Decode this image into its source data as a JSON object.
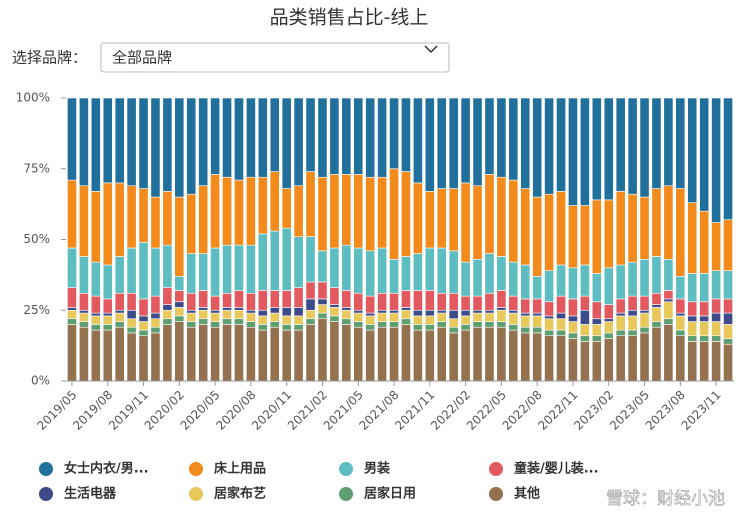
{
  "chart_data": {
    "type": "stacked_bar_percent",
    "title": "品类销售占比-线上",
    "filter_label": "选择品牌：",
    "filter_value": "全部品牌",
    "watermark": "雪球：财经小池",
    "categories": [
      "2019/05",
      null,
      null,
      "2019/08",
      null,
      null,
      "2019/11",
      null,
      null,
      "2020/02",
      null,
      null,
      "2020/05",
      null,
      null,
      "2020/08",
      null,
      null,
      "2020/11",
      null,
      null,
      "2021/02",
      null,
      null,
      "2021/05",
      null,
      null,
      "2021/08",
      null,
      null,
      "2021/11",
      null,
      null,
      "2022/02",
      null,
      null,
      "2022/05",
      null,
      null,
      "2022/08",
      null,
      null,
      "2022/11",
      null,
      null,
      "2023/02",
      null,
      null,
      "2023/05",
      null,
      null,
      "2023/08",
      null,
      null,
      "2023/11",
      null
    ],
    "ylim": [
      0,
      100
    ],
    "yticks": [
      {
        "value": 0,
        "label": "0%"
      },
      {
        "value": 25,
        "label": "25%"
      },
      {
        "value": 50,
        "label": "50%"
      },
      {
        "value": 75,
        "label": "75%"
      },
      {
        "value": 100,
        "label": "100%"
      }
    ],
    "series": [
      {
        "name": "女士内衣/男...",
        "color": "#21709c",
        "values": [
          29,
          31,
          33,
          30,
          30,
          31,
          32,
          35,
          33,
          35,
          34,
          31,
          27,
          28,
          29,
          28,
          28,
          26,
          32,
          31,
          26,
          28,
          27,
          27,
          27,
          28,
          28,
          25,
          26,
          30,
          33,
          32,
          32,
          30,
          31,
          27,
          28,
          29,
          32,
          35,
          34,
          33,
          38,
          38,
          36,
          36,
          33,
          34,
          35,
          32,
          31,
          32,
          37,
          40,
          44,
          43
        ]
      },
      {
        "name": "床上用品",
        "color": "#f38b1c",
        "values": [
          24,
          25,
          25,
          29,
          26,
          22,
          19,
          18,
          19,
          28,
          21,
          24,
          26,
          24,
          23,
          24,
          20,
          21,
          14,
          18,
          23,
          26,
          26,
          25,
          26,
          26,
          25,
          32,
          30,
          25,
          20,
          21,
          22,
          28,
          26,
          28,
          28,
          29,
          27,
          28,
          27,
          26,
          22,
          21,
          26,
          24,
          26,
          24,
          22,
          24,
          26,
          31,
          25,
          22,
          17,
          18
        ]
      },
      {
        "name": "男装",
        "color": "#5ebdc0",
        "values": [
          14,
          13,
          12,
          12,
          13,
          16,
          20,
          17,
          15,
          5,
          14,
          13,
          17,
          17,
          16,
          17,
          20,
          21,
          22,
          18,
          16,
          11,
          14,
          16,
          16,
          16,
          16,
          12,
          12,
          13,
          15,
          16,
          15,
          12,
          13,
          14,
          12,
          12,
          12,
          8,
          11,
          11,
          11,
          11,
          10,
          13,
          12,
          12,
          13,
          13,
          11,
          8,
          10,
          10,
          10,
          10
        ]
      },
      {
        "name": "童装/婴儿装...",
        "color": "#e25a5f",
        "values": [
          7,
          6,
          6,
          5,
          6,
          6,
          6,
          6,
          6,
          4,
          6,
          6,
          5,
          5,
          6,
          6,
          7,
          6,
          6,
          7,
          6,
          6,
          6,
          6,
          6,
          6,
          6,
          6,
          6,
          7,
          7,
          6,
          6,
          5,
          5,
          6,
          6,
          5,
          5,
          5,
          5,
          6,
          6,
          5,
          6,
          5,
          5,
          5,
          5,
          4,
          3,
          5,
          5,
          5,
          5,
          5
        ]
      },
      {
        "name": "生活电器",
        "color": "#3e4b8b",
        "values": [
          1,
          1,
          1,
          1,
          1,
          3,
          2,
          2,
          2,
          2,
          1,
          1,
          1,
          1,
          1,
          1,
          2,
          2,
          3,
          3,
          4,
          2,
          1,
          1,
          1,
          1,
          1,
          1,
          1,
          2,
          2,
          1,
          3,
          2,
          1,
          1,
          1,
          1,
          1,
          1,
          1,
          2,
          2,
          5,
          2,
          1,
          1,
          2,
          1,
          1,
          1,
          1,
          2,
          2,
          3,
          4
        ]
      },
      {
        "name": "居家布艺",
        "color": "#e8c85b",
        "values": [
          3,
          3,
          3,
          3,
          3,
          3,
          3,
          3,
          3,
          3,
          3,
          3,
          3,
          3,
          3,
          3,
          3,
          3,
          3,
          3,
          3,
          3,
          3,
          3,
          3,
          3,
          3,
          3,
          3,
          3,
          3,
          3,
          3,
          3,
          3,
          3,
          4,
          4,
          4,
          4,
          4,
          4,
          4,
          4,
          4,
          4,
          5,
          5,
          5,
          5,
          6,
          5,
          5,
          5,
          5,
          5
        ]
      },
      {
        "name": "居家日用",
        "color": "#5d9f70",
        "values": [
          2,
          2,
          2,
          2,
          2,
          2,
          2,
          2,
          2,
          2,
          2,
          2,
          2,
          2,
          2,
          2,
          2,
          2,
          2,
          2,
          2,
          2,
          2,
          2,
          2,
          2,
          2,
          2,
          2,
          2,
          2,
          2,
          2,
          2,
          2,
          2,
          2,
          2,
          2,
          2,
          2,
          2,
          2,
          2,
          2,
          2,
          2,
          2,
          2,
          2,
          2,
          2,
          2,
          2,
          2,
          2
        ]
      },
      {
        "name": "其他",
        "color": "#94714f",
        "values": [
          20,
          19,
          18,
          18,
          19,
          17,
          16,
          17,
          20,
          21,
          19,
          20,
          19,
          20,
          20,
          19,
          18,
          19,
          18,
          18,
          20,
          22,
          21,
          20,
          19,
          18,
          19,
          19,
          20,
          18,
          18,
          19,
          17,
          18,
          19,
          19,
          19,
          18,
          17,
          17,
          16,
          16,
          15,
          14,
          14,
          15,
          16,
          16,
          17,
          19,
          20,
          16,
          14,
          14,
          14,
          13
        ]
      }
    ]
  }
}
